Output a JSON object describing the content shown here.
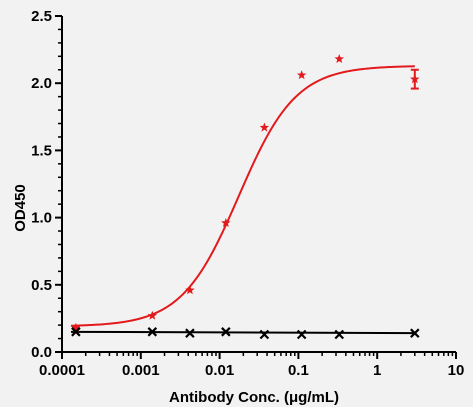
{
  "chart_data": {
    "type": "scatter",
    "title": "",
    "xlabel": "Antibody Conc. (μg/mL)",
    "ylabel": "OD450",
    "x_scale": "log",
    "xlim": [
      0.0001,
      10
    ],
    "ylim": [
      0,
      2.5
    ],
    "x_ticks": [
      0.0001,
      0.001,
      0.01,
      0.1,
      1,
      10
    ],
    "x_tick_labels": [
      "0.0001",
      "0.001",
      "0.01",
      "0.1",
      "1",
      "10"
    ],
    "y_ticks": [
      0,
      0.5,
      1,
      1.5,
      2,
      2.5
    ],
    "y_tick_labels": [
      "0.0",
      "0.5",
      "1.0",
      "1.5",
      "2.0",
      "2.5"
    ],
    "grid": false,
    "legend": "none",
    "series": [
      {
        "marker": "star",
        "color": "#e31a1c",
        "fit": "sigmoidal",
        "points": [
          {
            "x": 0.00015,
            "y": 0.18
          },
          {
            "x": 0.0014,
            "y": 0.27
          },
          {
            "x": 0.0042,
            "y": 0.46
          },
          {
            "x": 0.012,
            "y": 0.96
          },
          {
            "x": 0.037,
            "y": 1.67
          },
          {
            "x": 0.11,
            "y": 2.06
          },
          {
            "x": 0.33,
            "y": 2.18
          },
          {
            "x": 3.0,
            "y": 2.03,
            "err": 0.07
          }
        ],
        "fit_params": {
          "bottom": 0.19,
          "top": 2.13,
          "ec50": 0.0175,
          "hill": 1.2
        }
      },
      {
        "marker": "x",
        "color": "#000000",
        "fit": "linear",
        "points": [
          {
            "x": 0.00015,
            "y": 0.15
          },
          {
            "x": 0.0014,
            "y": 0.15
          },
          {
            "x": 0.0042,
            "y": 0.14
          },
          {
            "x": 0.012,
            "y": 0.15
          },
          {
            "x": 0.037,
            "y": 0.13
          },
          {
            "x": 0.11,
            "y": 0.13
          },
          {
            "x": 0.33,
            "y": 0.13
          },
          {
            "x": 3.0,
            "y": 0.14
          }
        ]
      }
    ]
  }
}
